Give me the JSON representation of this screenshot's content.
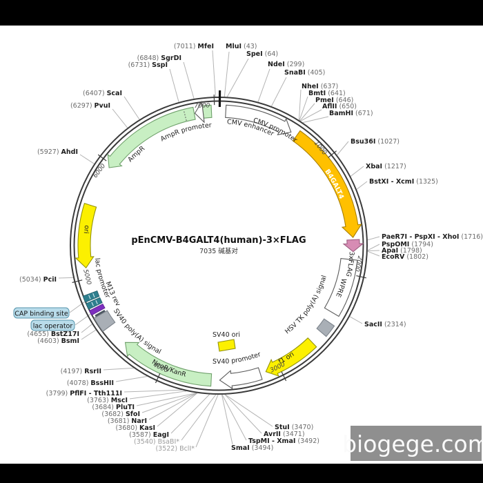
{
  "title": "pEnCMV-B4GALT4(human)-3×FLAG",
  "subtitle": "7035 碱基对",
  "watermark": "biogege.com",
  "ticks": [
    "1000",
    "2000",
    "3000",
    "4000",
    "5000",
    "6000",
    "7000"
  ],
  "features": {
    "cmv_enhancer": "CMV enhancer",
    "cmv_promoter": "CMV promoter",
    "b4galt4": "B4GALT4",
    "flag_3x": "3xFLAG",
    "wpre": "WPRE",
    "hsv_tk_polya": "HSV TK poly(A) signal",
    "f1_ori": "f1 ori",
    "sv40_promoter": "SV40 promoter",
    "sv40_ori": "SV40 ori",
    "neor_kanr": "NeoR/KanR",
    "sv40_polya": "SV40 poly(A) signal",
    "m13_rev": "M13 rev",
    "lac_promoter": "lac promoter",
    "lac_operator": "lac operator",
    "cap_binding_site": "CAP binding site",
    "ori": "ori",
    "ampr": "AmpR",
    "ampr_promoter": "AmpR promoter"
  },
  "sites": [
    {
      "name": "MluI",
      "pos": "(43)"
    },
    {
      "name": "SpeI",
      "pos": "(64)"
    },
    {
      "name": "NdeI",
      "pos": "(299)"
    },
    {
      "name": "SnaBI",
      "pos": "(405)"
    },
    {
      "name": "NheI",
      "pos": "(637)"
    },
    {
      "name": "BmtI",
      "pos": "(641)"
    },
    {
      "name": "PmeI",
      "pos": "(646)"
    },
    {
      "name": "AflII",
      "pos": "(650)"
    },
    {
      "name": "BamHI",
      "pos": "(671)"
    },
    {
      "name": "Bsu36I",
      "pos": "(1027)"
    },
    {
      "name": "XbaI",
      "pos": "(1217)"
    },
    {
      "name": "BstXI - XcmI",
      "pos": "(1325)"
    },
    {
      "name": "PaeR7I - PspXI - XhoI",
      "pos": "(1716)"
    },
    {
      "name": "PspOMI",
      "pos": "(1794)"
    },
    {
      "name": "ApaI",
      "pos": "(1798)"
    },
    {
      "name": "EcoRV",
      "pos": "(1802)"
    },
    {
      "name": "SacII",
      "pos": "(2314)"
    },
    {
      "name": "StuI",
      "pos": "(3470)"
    },
    {
      "name": "AvrII",
      "pos": "(3471)"
    },
    {
      "name": "TspMI - XmaI",
      "pos": "(3492)"
    },
    {
      "name": "SmaI",
      "pos": "(3494)"
    },
    {
      "name": "BclI*",
      "pos": "(3522)"
    },
    {
      "name": "BsaBI*",
      "pos": "(3540)"
    },
    {
      "name": "EagI",
      "pos": "(3587)"
    },
    {
      "name": "KasI",
      "pos": "(3680)"
    },
    {
      "name": "NarI",
      "pos": "(3681)"
    },
    {
      "name": "SfoI",
      "pos": "(3682)"
    },
    {
      "name": "PluTI",
      "pos": "(3684)"
    },
    {
      "name": "MscI",
      "pos": "(3763)"
    },
    {
      "name": "PflFI - Tth111I",
      "pos": "(3799)"
    },
    {
      "name": "BssHII",
      "pos": "(4078)"
    },
    {
      "name": "RsrII",
      "pos": "(4197)"
    },
    {
      "name": "BsmI",
      "pos": "(4603)"
    },
    {
      "name": "BstZ17I",
      "pos": "(4655)"
    },
    {
      "name": "PciI",
      "pos": "(5034)"
    },
    {
      "name": "AhdI",
      "pos": "(5927)"
    },
    {
      "name": "PvuI",
      "pos": "(6297)"
    },
    {
      "name": "ScaI",
      "pos": "(6407)"
    },
    {
      "name": "SspI",
      "pos": "(6731)"
    },
    {
      "name": "SgrDI",
      "pos": "(6848)"
    },
    {
      "name": "MfeI",
      "pos": "(7011)"
    }
  ]
}
